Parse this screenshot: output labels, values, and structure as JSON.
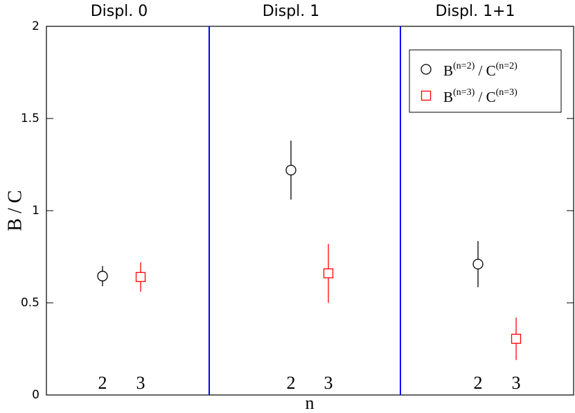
{
  "chart_data": {
    "type": "scatter",
    "ylabel": "B / C",
    "xlabel": "n",
    "ylim": [
      0,
      2
    ],
    "yticks": [
      0,
      0.5,
      1,
      1.5,
      2
    ],
    "panels": [
      {
        "title": "Displ. 0",
        "categories": [
          "2",
          "3"
        ]
      },
      {
        "title": "Displ. 1",
        "categories": [
          "2",
          "3"
        ]
      },
      {
        "title": "Displ. 1+1",
        "categories": [
          "2",
          "3"
        ]
      }
    ],
    "divider_color": "#0000ff",
    "series": [
      {
        "name": "B(n=2) / C(n=2)",
        "color": "#000000",
        "marker": "circle",
        "category": 0,
        "values": [
          0.645,
          1.22,
          0.71
        ],
        "errors": [
          0.055,
          0.16,
          0.125
        ]
      },
      {
        "name": "B(n=3) / C(n=3)",
        "color": "#ff0000",
        "marker": "square",
        "category": 1,
        "values": [
          0.64,
          0.66,
          0.305
        ],
        "errors": [
          0.08,
          0.16,
          0.115
        ]
      }
    ]
  }
}
